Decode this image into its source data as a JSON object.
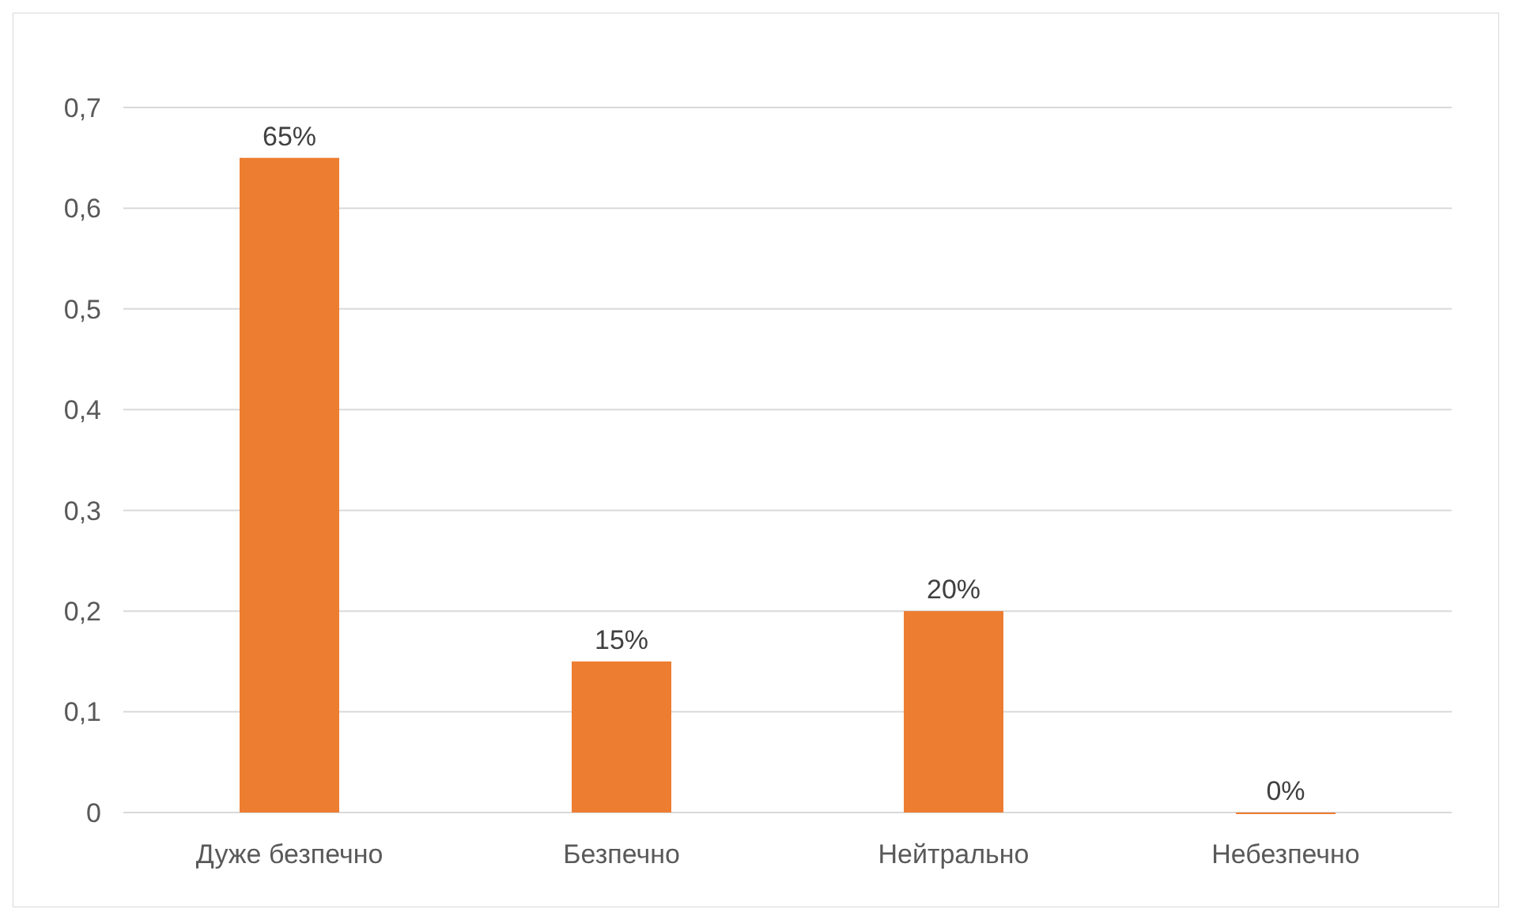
{
  "chart_data": {
    "type": "bar",
    "categories": [
      "Дуже безпечно",
      "Безпечно",
      "Нейтрально",
      "Небезпечно"
    ],
    "values": [
      0.65,
      0.15,
      0.2,
      0
    ],
    "value_labels": [
      "65%",
      "15%",
      "20%",
      "0%"
    ],
    "color": "#ed7d31",
    "ylim": [
      0,
      0.7
    ],
    "yticks": [
      0,
      {
        "value": 0.1,
        "label": "0,1"
      },
      {
        "value": 0.2,
        "label": "0,2"
      },
      {
        "value": 0.3,
        "label": "0,3"
      },
      {
        "value": 0.4,
        "label": "0,4"
      },
      {
        "value": 0.5,
        "label": "0,5"
      },
      {
        "value": 0.6,
        "label": "0,6"
      },
      {
        "value": 0.7,
        "label": "0,7"
      }
    ],
    "grid": "y"
  }
}
